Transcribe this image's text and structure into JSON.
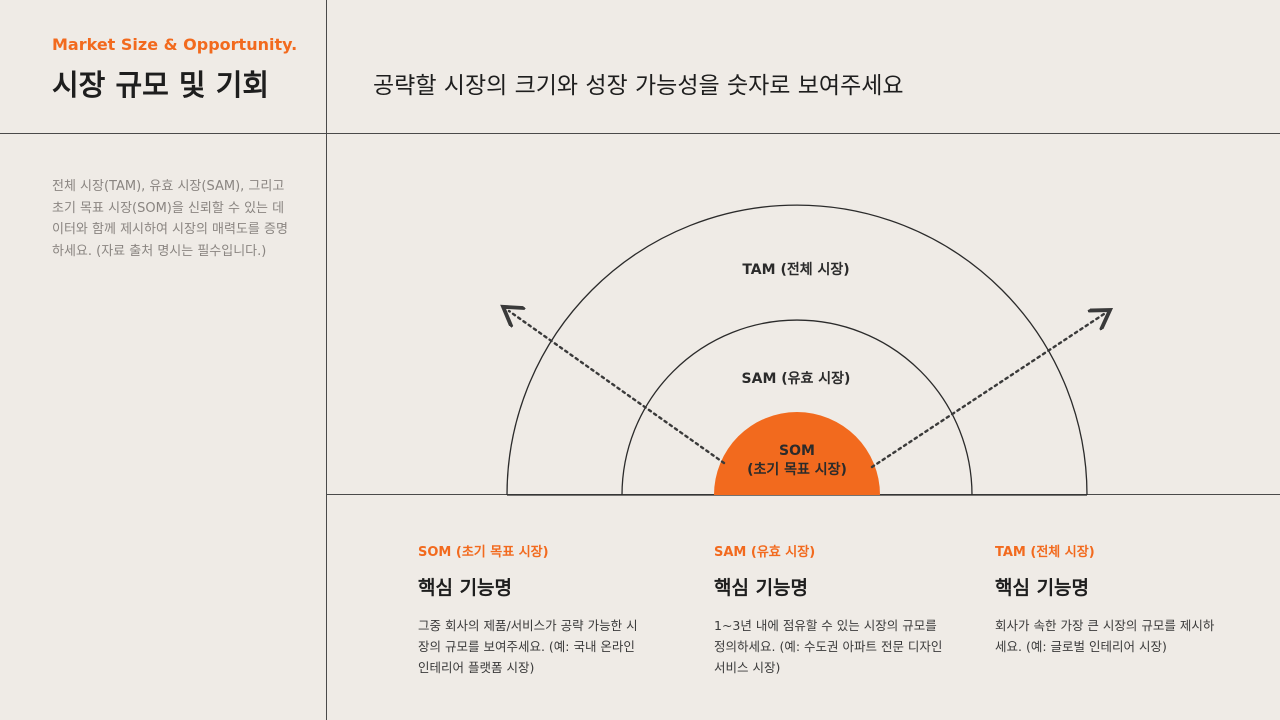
{
  "header": {
    "eyebrow": "Market Size & Opportunity.",
    "title": "시장 규모 및 기회",
    "headline": "공략할 시장의 크기와 성장 가능성을 숫자로 보여주세요"
  },
  "sidebar": {
    "description": "전체 시장(TAM), 유효 시장(SAM), 그리고 초기 목표 시장(SOM)을 신뢰할 수 있는 데이터와 함께 제시하여 시장의 매력도를 증명하세요. (자료 출처 명시는 필수입니다.)"
  },
  "diagram": {
    "tam_label": "TAM (전체 시장)",
    "sam_label": "SAM (유효 시장)",
    "som_label_line1": "SOM",
    "som_label_line2": "(초기 목표 시장)",
    "accent_color": "#f26a1e"
  },
  "cards": [
    {
      "tag": "SOM (초기 목표 시장)",
      "name": "핵심 기능명",
      "body": "그중 회사의 제품/서비스가 공략 가능한 시장의 규모를 보여주세요. (예: 국내 온라인 인테리어 플랫폼 시장)"
    },
    {
      "tag": "SAM (유효 시장)",
      "name": "핵심 기능명",
      "body": "1~3년 내에 점유할 수 있는 시장의 규모를 정의하세요. (예: 수도권 아파트 전문 디자인 서비스 시장)"
    },
    {
      "tag": "TAM (전체 시장)",
      "name": "핵심 기능명",
      "body": "회사가 속한 가장 큰 시장의 규모를 제시하세요. (예: 글로벌 인테리어 시장)"
    }
  ]
}
